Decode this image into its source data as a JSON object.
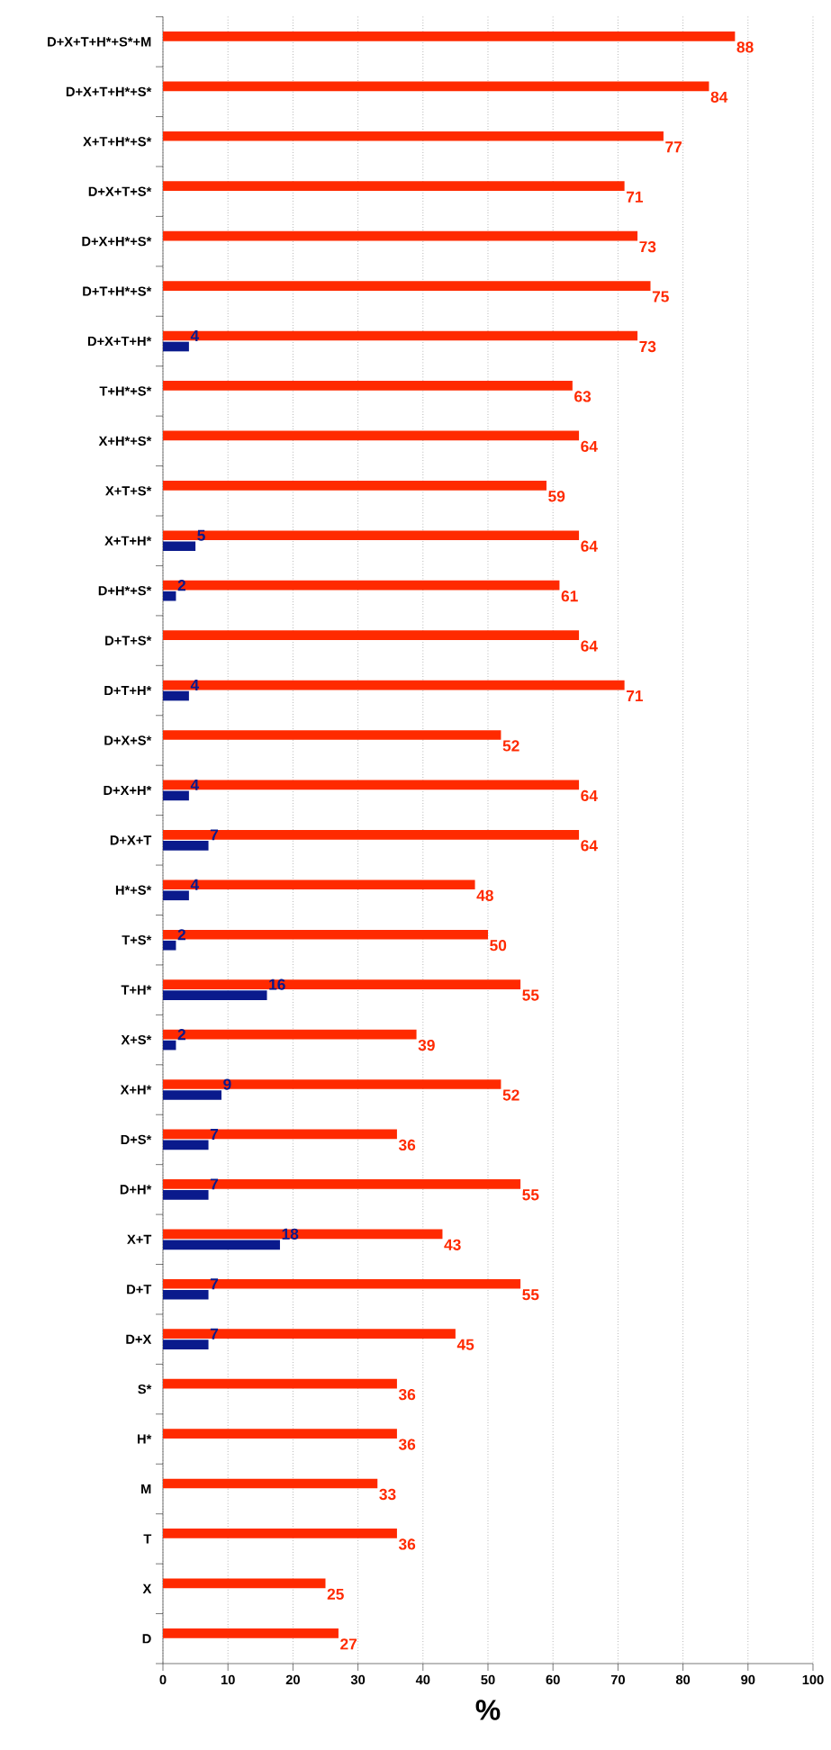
{
  "chart_data": {
    "type": "bar",
    "orientation": "horizontal",
    "xlabel": "%",
    "categories": [
      "D+X+T+H*+S*+M",
      "D+X+T+H*+S*",
      "X+T+H*+S*",
      "D+X+T+S*",
      "D+X+H*+S*",
      "D+T+H*+S*",
      "D+X+T+H*",
      "T+H*+S*",
      "X+H*+S*",
      "X+T+S*",
      "X+T+H*",
      "D+H*+S*",
      "D+T+S*",
      "D+T+H*",
      "D+X+S*",
      "D+X+H*",
      "D+X+T",
      "H*+S*",
      "T+S*",
      "T+H*",
      "X+S*",
      "X+H*",
      "D+S*",
      "D+H*",
      "X+T",
      "D+T",
      "D+X",
      "S*",
      "H*",
      "M",
      "T",
      "X",
      "D"
    ],
    "series": [
      {
        "color": "#0a1a8c",
        "values": [
          null,
          null,
          null,
          null,
          null,
          null,
          4,
          null,
          null,
          null,
          5,
          2,
          null,
          4,
          null,
          4,
          7,
          4,
          2,
          16,
          2,
          9,
          7,
          7,
          18,
          7,
          7,
          null,
          null,
          null,
          null,
          null,
          null
        ]
      },
      {
        "color": "#ff2a00",
        "values": [
          88,
          84,
          77,
          71,
          73,
          75,
          73,
          63,
          64,
          59,
          64,
          61,
          64,
          71,
          52,
          64,
          64,
          48,
          50,
          55,
          39,
          52,
          36,
          55,
          43,
          55,
          45,
          36,
          36,
          33,
          36,
          25,
          27
        ]
      }
    ],
    "xlim": [
      0,
      100
    ],
    "xticks": [
      0,
      10,
      20,
      30,
      40,
      50,
      60,
      70,
      80,
      90,
      100
    ],
    "grid": "x",
    "data_labels": true
  }
}
